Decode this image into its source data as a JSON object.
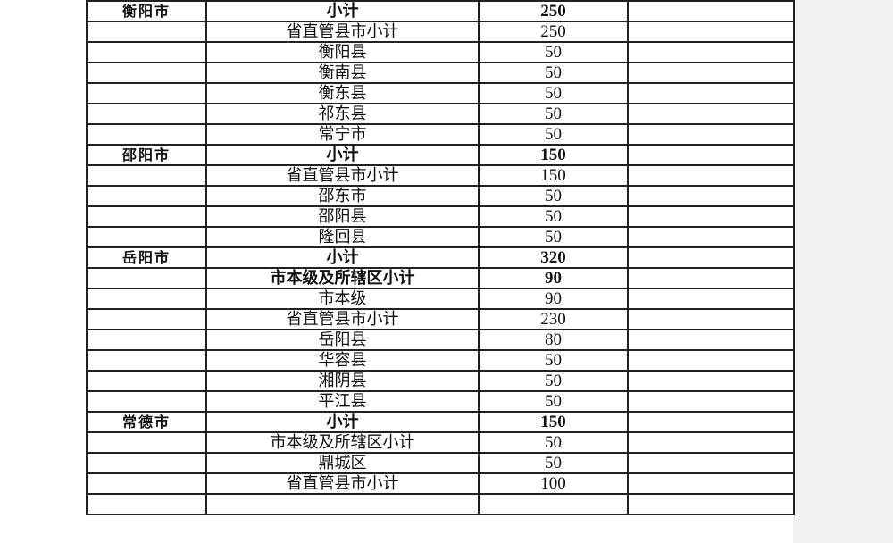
{
  "rows": [
    {
      "city": "",
      "name": "",
      "amount": "",
      "bold": false
    },
    {
      "city": "衡阳市",
      "name": "小计",
      "amount": "250",
      "bold": true
    },
    {
      "city": "",
      "name": "省直管县市小计",
      "amount": "250",
      "bold": false
    },
    {
      "city": "",
      "name": "衡阳县",
      "amount": "50",
      "bold": false
    },
    {
      "city": "",
      "name": "衡南县",
      "amount": "50",
      "bold": false
    },
    {
      "city": "",
      "name": "衡东县",
      "amount": "50",
      "bold": false
    },
    {
      "city": "",
      "name": "祁东县",
      "amount": "50",
      "bold": false
    },
    {
      "city": "",
      "name": "常宁市",
      "amount": "50",
      "bold": false
    },
    {
      "city": "邵阳市",
      "name": "小计",
      "amount": "150",
      "bold": true
    },
    {
      "city": "",
      "name": "省直管县市小计",
      "amount": "150",
      "bold": false
    },
    {
      "city": "",
      "name": "邵东市",
      "amount": "50",
      "bold": false
    },
    {
      "city": "",
      "name": "邵阳县",
      "amount": "50",
      "bold": false
    },
    {
      "city": "",
      "name": "隆回县",
      "amount": "50",
      "bold": false
    },
    {
      "city": "岳阳市",
      "name": "小计",
      "amount": "320",
      "bold": true
    },
    {
      "city": "",
      "name": "市本级及所辖区小计",
      "amount": "90",
      "bold": true
    },
    {
      "city": "",
      "name": "市本级",
      "amount": "90",
      "bold": false
    },
    {
      "city": "",
      "name": "省直管县市小计",
      "amount": "230",
      "bold": false
    },
    {
      "city": "",
      "name": "岳阳县",
      "amount": "80",
      "bold": false
    },
    {
      "city": "",
      "name": "华容县",
      "amount": "50",
      "bold": false
    },
    {
      "city": "",
      "name": "湘阴县",
      "amount": "50",
      "bold": false
    },
    {
      "city": "",
      "name": "平江县",
      "amount": "50",
      "bold": false
    },
    {
      "city": "常德市",
      "name": "小计",
      "amount": "150",
      "bold": true
    },
    {
      "city": "",
      "name": "市本级及所辖区小计",
      "amount": "50",
      "bold": false
    },
    {
      "city": "",
      "name": "鼎城区",
      "amount": "50",
      "bold": false
    },
    {
      "city": "",
      "name": "省直管县市小计",
      "amount": "100",
      "bold": false
    },
    {
      "city": "",
      "name": "",
      "amount": "",
      "bold": false
    }
  ]
}
